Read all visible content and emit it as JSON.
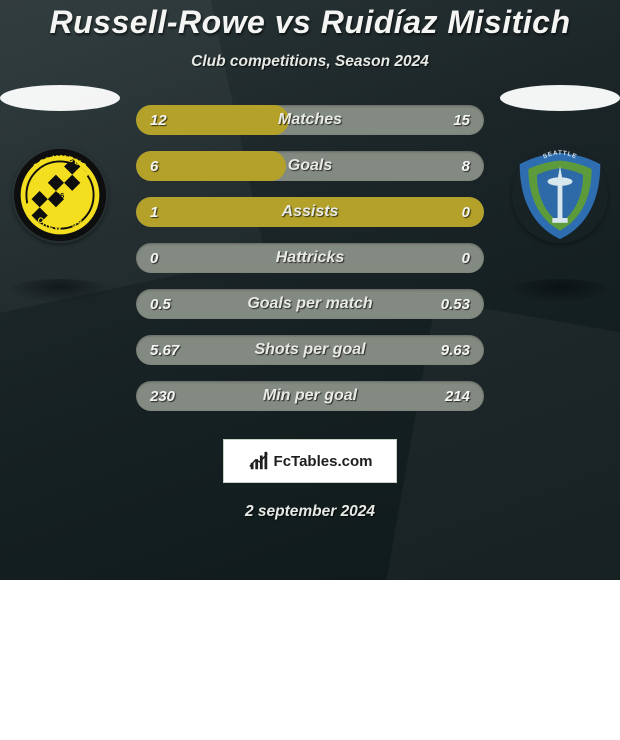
{
  "title": "Russell-Rowe vs Ruidíaz Misitich",
  "subtitle": "Club competitions, Season 2024",
  "date": "2 september 2024",
  "watermark": {
    "label": "FcTables.com"
  },
  "colors": {
    "bar_track": "#838a81",
    "bar_text": "#f4f5f3",
    "bg_gradient_from": "#2a3638",
    "bg_gradient_to": "#0e191a"
  },
  "left_crest": {
    "name": "columbus-crew",
    "ring_color": "#0e0e0e",
    "inner_bg": "#f3df1f",
    "text_color": "#0e0e0e"
  },
  "right_crest": {
    "name": "seattle-sounders",
    "outer_color": "#2d6db0",
    "mid_color": "#5c9a3c",
    "inner_color": "#2f6aa8",
    "needle_color": "#d8e6ed"
  },
  "stats": [
    {
      "label": "Matches",
      "left_val": "12",
      "right_val": "15",
      "fill_pct": 44,
      "fill_color": "#b3a12a"
    },
    {
      "label": "Goals",
      "left_val": "6",
      "right_val": "8",
      "fill_pct": 43,
      "fill_color": "#b3a12a"
    },
    {
      "label": "Assists",
      "left_val": "1",
      "right_val": "0",
      "fill_pct": 100,
      "fill_color": "#b3a12a"
    },
    {
      "label": "Hattricks",
      "left_val": "0",
      "right_val": "0",
      "fill_pct": 0,
      "fill_color": "#b3a12a"
    },
    {
      "label": "Goals per match",
      "left_val": "0.5",
      "right_val": "0.53",
      "fill_pct": 0,
      "fill_color": "#b3a12a"
    },
    {
      "label": "Shots per goal",
      "left_val": "5.67",
      "right_val": "9.63",
      "fill_pct": 0,
      "fill_color": "#b3a12a"
    },
    {
      "label": "Min per goal",
      "left_val": "230",
      "right_val": "214",
      "fill_pct": 0,
      "fill_color": "#b3a12a"
    }
  ]
}
